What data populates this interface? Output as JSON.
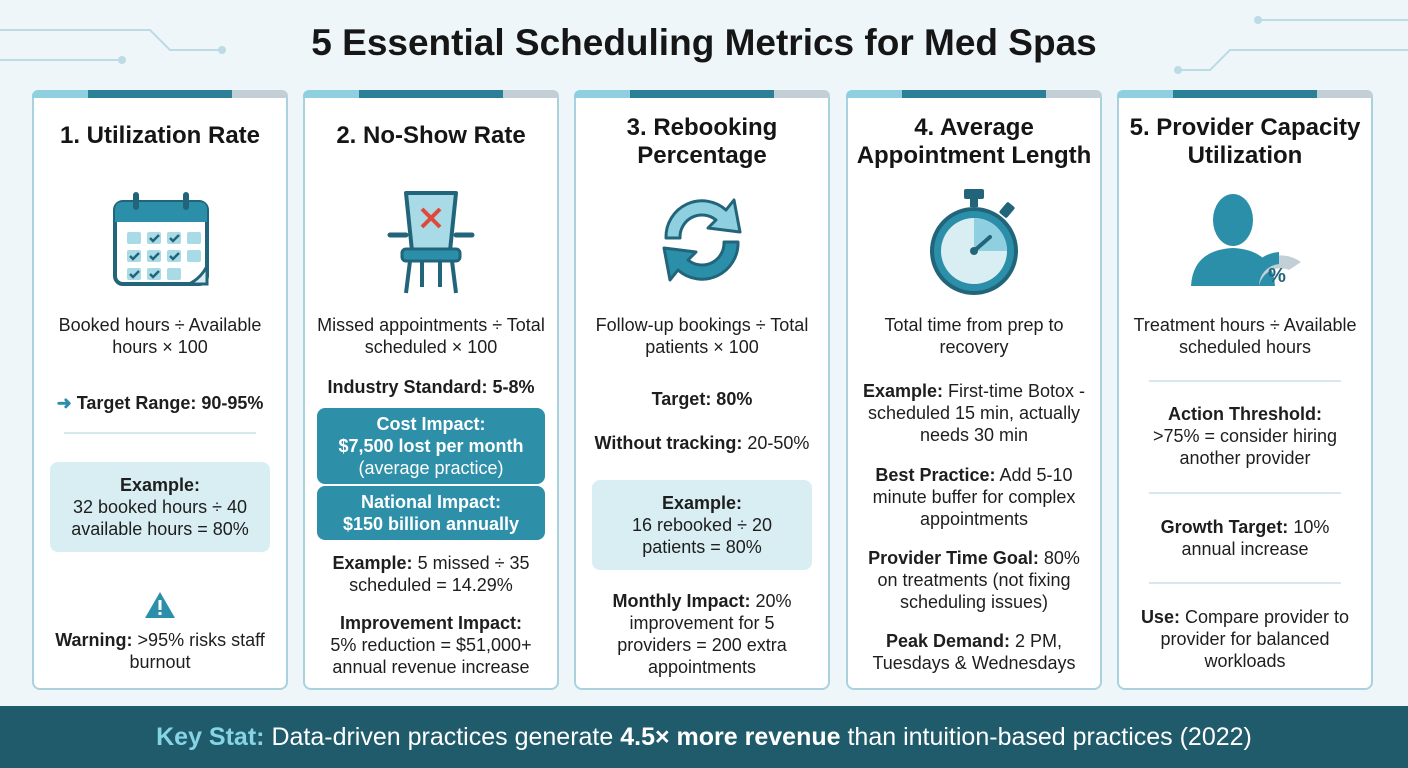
{
  "header": {
    "title": "5 Essential Scheduling Metrics for Med Spas"
  },
  "cards": [
    {
      "title": "1. Utilization Rate",
      "formula": "Booked hours ÷ Available hours × 100",
      "target": "Target Range: 90-95%",
      "example": {
        "label": "Example:",
        "text": "32 booked hours ÷ 40 available hours = 80%"
      },
      "warning": {
        "label": "Warning:",
        "text": ">95% risks staff burnout"
      }
    },
    {
      "title": "2. No-Show Rate",
      "formula": "Missed appointments ÷ Total scheduled × 100",
      "standard": "Industry Standard: 5-8%",
      "cost": {
        "label": "Cost Impact:",
        "value": "$7,500 lost per month",
        "note": "(average practice)"
      },
      "national": {
        "label": "National Impact:",
        "value": "$150 billion annually"
      },
      "example": {
        "label": "Example:",
        "text": "5 missed ÷ 35 scheduled = 14.29%"
      },
      "improvement": {
        "label": "Improvement Impact:",
        "text": "5% reduction = $51,000+ annual revenue increase"
      }
    },
    {
      "title": "3. Rebooking Percentage",
      "formula": "Follow-up bookings ÷ Total patients × 100",
      "target": "Target: 80%",
      "without": {
        "label": "Without tracking:",
        "text": "20-50%"
      },
      "example": {
        "label": "Example:",
        "text": "16 rebooked ÷ 20 patients = 80%"
      },
      "monthly": {
        "label": "Monthly Impact:",
        "text": "20% improvement for 5 providers = 200 extra appointments"
      }
    },
    {
      "title": "4. Average Appointment Length",
      "formula": "Total time from prep to recovery",
      "items": [
        {
          "label": "Example:",
          "text": "First-time Botox - scheduled 15 min, actually needs 30 min"
        },
        {
          "label": "Best Practice:",
          "text": "Add 5-10 minute buffer for complex appointments"
        },
        {
          "label": "Provider Time Goal:",
          "text": "80% on treatments (not fixing scheduling issues)"
        },
        {
          "label": "Peak Demand:",
          "text": "2 PM, Tuesdays & Wednesdays"
        }
      ]
    },
    {
      "title": "5. Provider Capacity Utilization",
      "formula": "Treatment hours ÷ Available scheduled hours",
      "icon_text": "%",
      "items": [
        {
          "label": "Action Threshold:",
          "text": ">75% = consider hiring another provider"
        },
        {
          "label": "Growth Target:",
          "text": "10% annual increase"
        },
        {
          "label": "Use:",
          "text": "Compare provider to provider for balanced workloads"
        }
      ]
    }
  ],
  "footer": {
    "label": "Key Stat:",
    "before": "Data-driven practices generate",
    "highlight": "4.5× more revenue",
    "after": "than intuition-based practices (2022)"
  }
}
